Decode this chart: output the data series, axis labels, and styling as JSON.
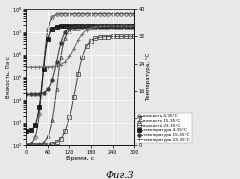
{
  "title": "Фиг.3",
  "xlabel": "Время, с",
  "ylabel_left": "Вязкость, Па·с",
  "ylabel_right": "Температура, °C",
  "x_max": 300,
  "x_ticks": [
    0,
    60,
    120,
    180,
    240,
    300
  ],
  "yleft_lim_log": [
    2,
    8
  ],
  "yright_lim": [
    0,
    40
  ],
  "yright_ticks": [
    0,
    8,
    16,
    24,
    32,
    40
  ],
  "background_color": "#e8e8e8",
  "grid_color": "#ffffff",
  "series": [
    {
      "name": "вязкость 4-35°C",
      "marker": "o",
      "color": "#444444",
      "fillstyle": "none",
      "type": "viscosity",
      "t_mid": 45,
      "v_start_log": 2.0,
      "v_end_log": 7.8,
      "k": 0.13
    },
    {
      "name": "вязкость 15-35°C",
      "marker": "^",
      "color": "#444444",
      "fillstyle": "none",
      "type": "viscosity",
      "t_mid": 85,
      "v_start_log": 2.0,
      "v_end_log": 7.2,
      "k": 0.1
    },
    {
      "name": "вязкость 23-35°C",
      "marker": "s",
      "color": "#444444",
      "fillstyle": "none",
      "type": "viscosity",
      "t_mid": 135,
      "v_start_log": 2.0,
      "v_end_log": 6.8,
      "k": 0.07
    },
    {
      "name": "температура 4-35°C",
      "marker": "s",
      "color": "#111111",
      "fillstyle": "full",
      "type": "temperature",
      "t_mid": 45,
      "T_start": 4,
      "T_end": 35,
      "k": 0.13
    },
    {
      "name": "температура 15-35°C",
      "marker": "o",
      "color": "#333333",
      "fillstyle": "full",
      "type": "temperature",
      "t_mid": 85,
      "T_start": 15,
      "T_end": 35,
      "k": 0.1
    },
    {
      "name": "температура 23-35°C",
      "marker": "+",
      "color": "#666666",
      "fillstyle": "full",
      "type": "temperature",
      "t_mid": 135,
      "T_start": 23,
      "T_end": 35,
      "k": 0.07
    }
  ]
}
